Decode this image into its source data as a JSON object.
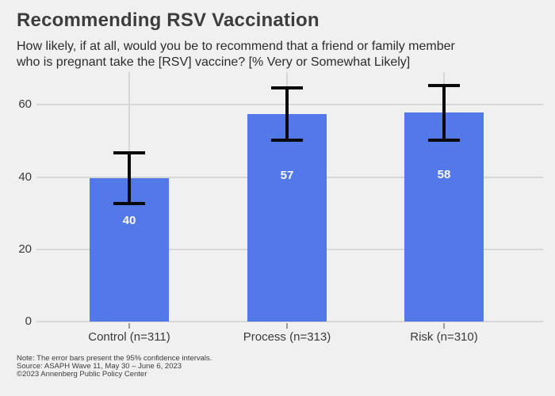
{
  "header": {
    "title": "Recommending RSV Vaccination",
    "subtitle_line1": "How likely, if at all, would you be to recommend that a friend or family member",
    "subtitle_line2": "who is pregnant take the [RSV] vaccine? [% Very or Somewhat Likely]"
  },
  "chart_data": {
    "type": "bar",
    "title": "Recommending RSV Vaccination",
    "subtitle": "How likely, if at all, would you be to recommend that a friend or family member who is pregnant take the [RSV] vaccine? [% Very or Somewhat Likely]",
    "categories": [
      "Control (n=311)",
      "Process (n=313)",
      "Risk (n=310)"
    ],
    "values": [
      40,
      57,
      58
    ],
    "values_precise": [
      39.7,
      57.5,
      57.9
    ],
    "bar_labels": [
      "40",
      "57",
      "58"
    ],
    "error_bars_95ci": [
      [
        32.7,
        46.7
      ],
      [
        50.2,
        64.6
      ],
      [
        50.2,
        65.4
      ]
    ],
    "yticks": [
      0,
      20,
      40,
      60
    ],
    "ylim": [
      0,
      69
    ],
    "xlabel": "",
    "ylabel": "",
    "grid": true,
    "legend": "none",
    "bar_color": "#5379e8",
    "bar_label_color": "#fcfcfc",
    "error_bar_color": "#0a0a0a"
  },
  "footer": {
    "note": "Note: The error bars present the 95% confidence intervals.",
    "source": "Source: ASAPH Wave 11, May 30 – June 6, 2023",
    "copyright": "©2023 Annenberg Public Policy Center"
  },
  "colors": {
    "background": "#f0f0f0",
    "gridline": "#d7d7d7",
    "axis_text": "#3a3a3a",
    "title_text": "#3d3d3d"
  }
}
